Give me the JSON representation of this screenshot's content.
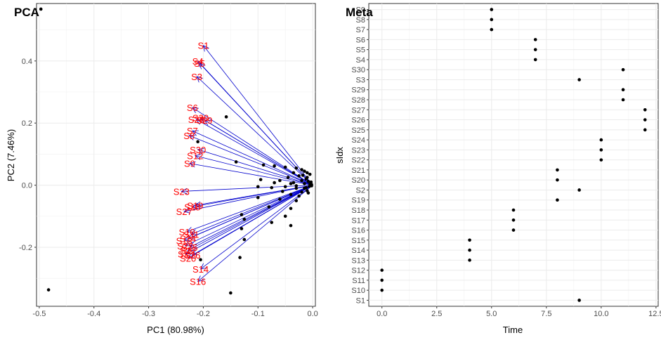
{
  "chart_data": [
    {
      "type": "scatter",
      "title": "PCA",
      "xlabel": "PC1 (80.98%)",
      "ylabel": "PC2 (7.46%)",
      "xlim": [
        -0.505,
        0.005
      ],
      "ylim": [
        -0.39,
        0.585
      ],
      "xticks": [
        -0.5,
        -0.4,
        -0.3,
        -0.2,
        -0.1,
        0.0
      ],
      "xtick_labels": [
        "-0.5",
        "-0.4",
        "-0.3",
        "-0.2",
        "-0.1",
        "0.0"
      ],
      "yticks": [
        -0.2,
        0.0,
        0.2,
        0.4
      ],
      "ytick_labels": [
        "-0.2",
        "0.0",
        "0.2",
        "0.4"
      ],
      "grid": true,
      "arrow_color": "#0000cd",
      "label_color": "#ff0000",
      "point_color": "#000000",
      "points": [
        [
          -0.497,
          0.567
        ],
        [
          -0.483,
          -0.337
        ],
        [
          -0.15,
          -0.347
        ],
        [
          -0.133,
          -0.233
        ],
        [
          -0.205,
          -0.24
        ],
        [
          -0.158,
          0.22
        ],
        [
          -0.21,
          0.14
        ],
        [
          -0.14,
          0.075
        ],
        [
          -0.09,
          0.065
        ],
        [
          -0.07,
          0.062
        ],
        [
          -0.05,
          0.058
        ],
        [
          -0.03,
          0.055
        ],
        [
          -0.02,
          0.05
        ],
        [
          -0.015,
          0.045
        ],
        [
          -0.035,
          0.04
        ],
        [
          -0.01,
          0.04
        ],
        [
          -0.005,
          0.035
        ],
        [
          -0.025,
          0.03
        ],
        [
          -0.045,
          0.025
        ],
        [
          -0.01,
          0.025
        ],
        [
          -0.095,
          0.018
        ],
        [
          -0.06,
          0.015
        ],
        [
          -0.02,
          0.015
        ],
        [
          -0.008,
          0.012
        ],
        [
          -0.003,
          0.01
        ],
        [
          -0.07,
          0.008
        ],
        [
          -0.04,
          0.005
        ],
        [
          -0.015,
          0.005
        ],
        [
          -0.005,
          0.003
        ],
        [
          -0.002,
          0.002
        ],
        [
          -0.1,
          -0.005
        ],
        [
          -0.075,
          -0.008
        ],
        [
          -0.05,
          -0.005
        ],
        [
          -0.03,
          -0.01
        ],
        [
          -0.012,
          -0.008
        ],
        [
          -0.006,
          -0.004
        ],
        [
          -0.002,
          -0.002
        ],
        [
          -0.055,
          -0.02
        ],
        [
          -0.02,
          -0.022
        ],
        [
          -0.01,
          -0.018
        ],
        [
          -0.04,
          -0.03
        ],
        [
          -0.025,
          -0.035
        ],
        [
          -0.1,
          -0.04
        ],
        [
          -0.06,
          -0.045
        ],
        [
          -0.03,
          -0.05
        ],
        [
          -0.13,
          -0.095
        ],
        [
          -0.08,
          -0.07
        ],
        [
          -0.04,
          -0.075
        ],
        [
          -0.125,
          -0.11
        ],
        [
          -0.05,
          -0.1
        ],
        [
          -0.13,
          -0.14
        ],
        [
          -0.075,
          -0.12
        ],
        [
          -0.04,
          -0.13
        ],
        [
          -0.125,
          -0.175
        ],
        [
          -0.015,
          -0.01
        ],
        [
          -0.012,
          0.02
        ],
        [
          -0.035,
          0.008
        ],
        [
          -0.03,
          -0.002
        ],
        [
          -0.008,
          -0.025
        ],
        [
          -0.018,
          0.032
        ]
      ],
      "arrows": [
        {
          "label": "S1",
          "x": -0.2,
          "y": 0.45
        },
        {
          "label": "S4",
          "x": -0.21,
          "y": 0.4
        },
        {
          "label": "S5",
          "x": -0.207,
          "y": 0.393
        },
        {
          "label": "S3",
          "x": -0.212,
          "y": 0.35
        },
        {
          "label": "S6",
          "x": -0.22,
          "y": 0.25
        },
        {
          "label": "S30",
          "x": -0.205,
          "y": 0.217
        },
        {
          "label": "S28",
          "x": -0.213,
          "y": 0.212
        },
        {
          "label": "S29",
          "x": -0.198,
          "y": 0.21
        },
        {
          "label": "S7",
          "x": -0.22,
          "y": 0.175
        },
        {
          "label": "S8",
          "x": -0.226,
          "y": 0.16
        },
        {
          "label": "S30",
          "x": -0.21,
          "y": 0.115
        },
        {
          "label": "S12",
          "x": -0.215,
          "y": 0.095
        },
        {
          "label": "S9",
          "x": -0.225,
          "y": 0.07
        },
        {
          "label": "S23",
          "x": -0.24,
          "y": -0.02
        },
        {
          "label": "S19",
          "x": -0.215,
          "y": -0.065
        },
        {
          "label": "S18",
          "x": -0.22,
          "y": -0.07
        },
        {
          "label": "S27",
          "x": -0.235,
          "y": -0.085
        },
        {
          "label": "S10",
          "x": -0.23,
          "y": -0.15
        },
        {
          "label": "S11",
          "x": -0.222,
          "y": -0.158
        },
        {
          "label": "S13",
          "x": -0.235,
          "y": -0.178
        },
        {
          "label": "S24",
          "x": -0.228,
          "y": -0.172
        },
        {
          "label": "S22",
          "x": -0.233,
          "y": -0.195
        },
        {
          "label": "S15",
          "x": -0.225,
          "y": -0.2
        },
        {
          "label": "S17",
          "x": -0.228,
          "y": -0.21
        },
        {
          "label": "S25",
          "x": -0.232,
          "y": -0.222
        },
        {
          "label": "S26",
          "x": -0.22,
          "y": -0.225
        },
        {
          "label": "S20",
          "x": -0.228,
          "y": -0.235
        },
        {
          "label": "S14",
          "x": -0.205,
          "y": -0.27
        },
        {
          "label": "S16",
          "x": -0.21,
          "y": -0.31
        }
      ]
    },
    {
      "type": "scatter",
      "title": "Meta",
      "xlabel": "Time",
      "ylabel": "sIdx",
      "xlim": [
        -0.6,
        12.6
      ],
      "xticks": [
        0,
        2.5,
        5,
        7.5,
        10,
        12.5
      ],
      "xtick_labels": [
        "0.0",
        "2.5",
        "5.0",
        "7.5",
        "10.0",
        "12.5"
      ],
      "categories": [
        "S1",
        "S10",
        "S11",
        "S12",
        "S13",
        "S14",
        "S15",
        "S16",
        "S17",
        "S18",
        "S19",
        "S2",
        "S20",
        "S21",
        "S22",
        "S23",
        "S24",
        "S25",
        "S26",
        "S27",
        "S28",
        "S29",
        "S3",
        "S30",
        "S4",
        "S5",
        "S6",
        "S7",
        "S8",
        "S9"
      ],
      "grid": true,
      "point_color": "#000000",
      "points": [
        {
          "sample": "S1",
          "time": 9
        },
        {
          "sample": "S10",
          "time": 0
        },
        {
          "sample": "S11",
          "time": 0
        },
        {
          "sample": "S12",
          "time": 0
        },
        {
          "sample": "S13",
          "time": 4
        },
        {
          "sample": "S14",
          "time": 4
        },
        {
          "sample": "S15",
          "time": 4
        },
        {
          "sample": "S16",
          "time": 6
        },
        {
          "sample": "S17",
          "time": 6
        },
        {
          "sample": "S18",
          "time": 6
        },
        {
          "sample": "S19",
          "time": 8
        },
        {
          "sample": "S2",
          "time": 9
        },
        {
          "sample": "S20",
          "time": 8
        },
        {
          "sample": "S21",
          "time": 8
        },
        {
          "sample": "S22",
          "time": 10
        },
        {
          "sample": "S23",
          "time": 10
        },
        {
          "sample": "S24",
          "time": 10
        },
        {
          "sample": "S25",
          "time": 12
        },
        {
          "sample": "S26",
          "time": 12
        },
        {
          "sample": "S27",
          "time": 12
        },
        {
          "sample": "S28",
          "time": 11
        },
        {
          "sample": "S29",
          "time": 11
        },
        {
          "sample": "S3",
          "time": 9
        },
        {
          "sample": "S30",
          "time": 11
        },
        {
          "sample": "S4",
          "time": 7
        },
        {
          "sample": "S5",
          "time": 7
        },
        {
          "sample": "S6",
          "time": 7
        },
        {
          "sample": "S7",
          "time": 5
        },
        {
          "sample": "S8",
          "time": 5
        },
        {
          "sample": "S9",
          "time": 5
        }
      ]
    }
  ]
}
